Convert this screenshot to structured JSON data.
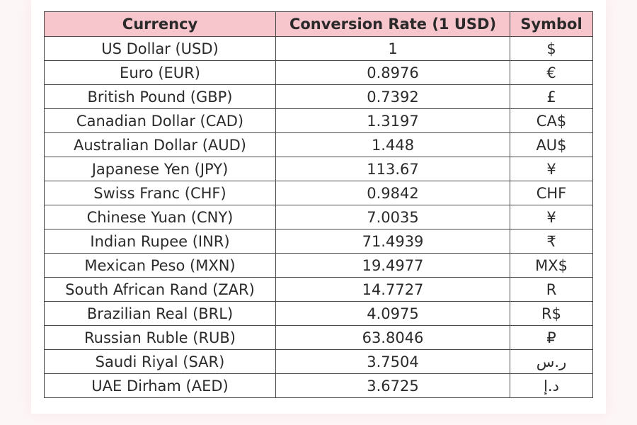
{
  "table": {
    "headers": [
      "Currency",
      "Conversion Rate (1 USD)",
      "Symbol"
    ],
    "rows": [
      [
        "US Dollar (USD)",
        "1",
        "$"
      ],
      [
        "Euro (EUR)",
        "0.8976",
        "€"
      ],
      [
        "British Pound (GBP)",
        "0.7392",
        "£"
      ],
      [
        "Canadian Dollar (CAD)",
        "1.3197",
        "CA$"
      ],
      [
        "Australian Dollar (AUD)",
        "1.448",
        "AU$"
      ],
      [
        "Japanese Yen (JPY)",
        "113.67",
        "¥"
      ],
      [
        "Swiss Franc (CHF)",
        "0.9842",
        "CHF"
      ],
      [
        "Chinese Yuan (CNY)",
        "7.0035",
        "¥"
      ],
      [
        "Indian Rupee (INR)",
        "71.4939",
        "₹"
      ],
      [
        "Mexican Peso (MXN)",
        "19.4977",
        "MX$"
      ],
      [
        "South African Rand (ZAR)",
        "14.7727",
        "R"
      ],
      [
        "Brazilian Real (BRL)",
        "4.0975",
        "R$"
      ],
      [
        "Russian Ruble (RUB)",
        "63.8046",
        "₽"
      ],
      [
        "Saudi Riyal (SAR)",
        "3.7504",
        "ر.س"
      ],
      [
        "UAE Dirham (AED)",
        "3.6725",
        "د.إ"
      ]
    ]
  },
  "colors": {
    "header_bg": "#f7c6cc",
    "border": "#4a4a4a",
    "page_bg": "#fdf6f7"
  }
}
